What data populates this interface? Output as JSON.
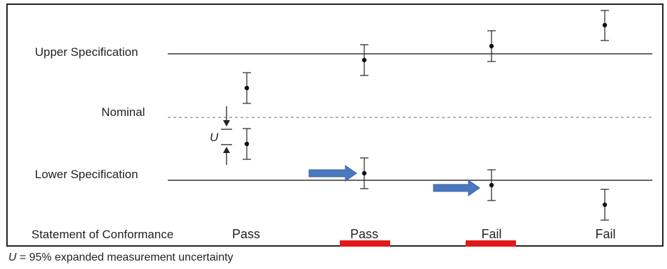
{
  "diagram": {
    "limits": {
      "upper": "Upper Specification",
      "nominal": "Nominal",
      "lower": "Lower Specification"
    },
    "uncertainty_symbol": "U",
    "statement_label": "Statement of Conformance",
    "columns": [
      {
        "statement": "Pass",
        "flagged": false
      },
      {
        "statement": "Pass",
        "flagged": true
      },
      {
        "statement": "Fail",
        "flagged": true
      },
      {
        "statement": "Fail",
        "flagged": false
      }
    ],
    "colors": {
      "line": "#333333",
      "nominal_line": "#888888",
      "arrow": "#4a78c0",
      "flag": "#e01a1a"
    }
  },
  "footnote": {
    "symbol": "U",
    "text": " = 95% expanded measurement uncertainty"
  }
}
